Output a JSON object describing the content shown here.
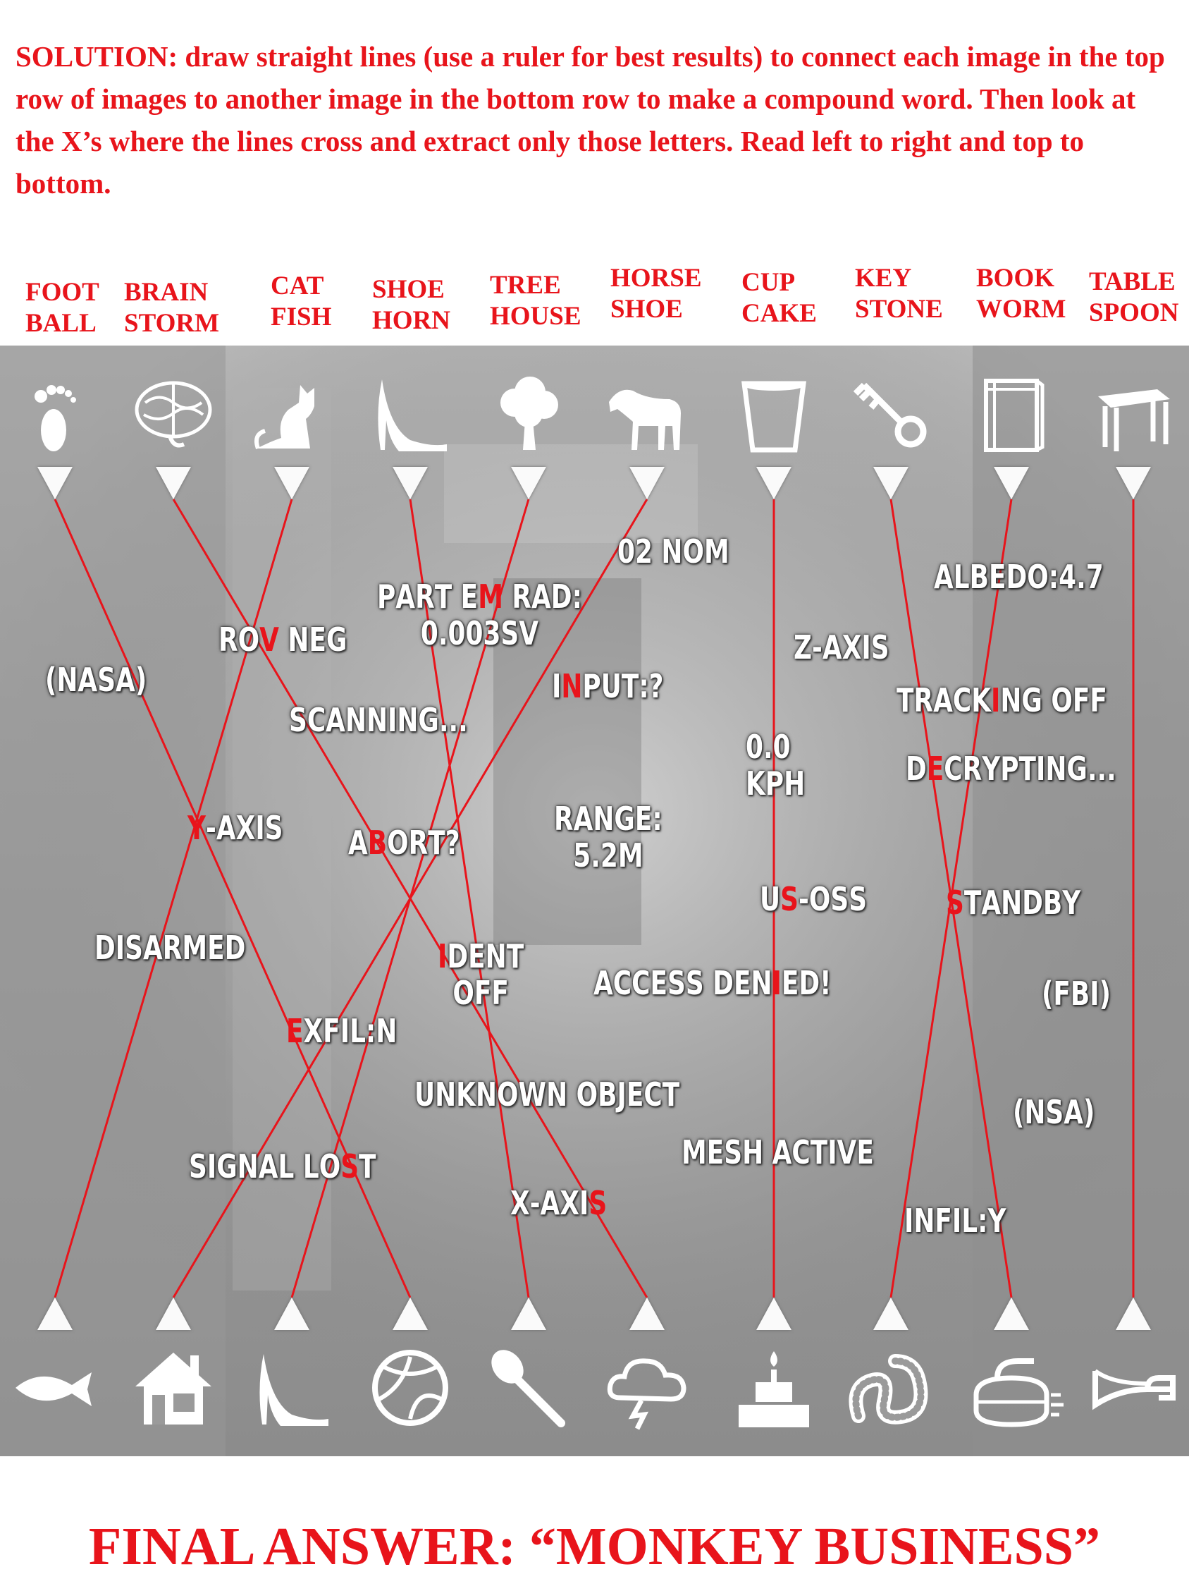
{
  "instructions": "SOLUTION: draw straight lines (use a ruler for best results) to connect each image in the top row of images to another image in the bottom row to make a compound word. Then look at the X’s where the lines cross and extract only those letters. Read left to right and top to bottom.",
  "compound_words": [
    {
      "first": "FOOT",
      "second": "BALL"
    },
    {
      "first": "BRAIN",
      "second": "STORM"
    },
    {
      "first": "CAT",
      "second": "FISH"
    },
    {
      "first": "SHOE",
      "second": "HORN"
    },
    {
      "first": "TREE",
      "second": "HOUSE"
    },
    {
      "first": "HORSE",
      "second": "SHOE"
    },
    {
      "first": "CUP",
      "second": "CAKE"
    },
    {
      "first": "KEY",
      "second": "STONE"
    },
    {
      "first": "BOOK",
      "second": "WORM"
    },
    {
      "first": "TABLE",
      "second": "SPOON"
    }
  ],
  "top_icons": [
    "foot-icon",
    "brain-icon",
    "cat-icon",
    "high-heel-shoe-icon",
    "tree-icon",
    "horse-icon",
    "cup-icon",
    "key-icon",
    "book-icon",
    "table-icon"
  ],
  "bottom_icons": [
    "fish-icon",
    "house-icon",
    "high-heel-shoe-icon",
    "volleyball-icon",
    "spoon-icon",
    "storm-cloud-icon",
    "cake-icon",
    "worm-icon",
    "curling-stone-icon",
    "horn-icon"
  ],
  "connections": [
    [
      0,
      3
    ],
    [
      1,
      5
    ],
    [
      2,
      0
    ],
    [
      3,
      4
    ],
    [
      4,
      2
    ],
    [
      5,
      1
    ],
    [
      6,
      6
    ],
    [
      7,
      8
    ],
    [
      8,
      7
    ],
    [
      9,
      9
    ]
  ],
  "line_color": "#e8141b",
  "accent_color": "#e8141b",
  "labels": [
    {
      "rows": [
        "02 NOM"
      ]
    },
    {
      "rows": [
        "PART EM RAD:",
        "0.003SV"
      ],
      "marked": [
        0,
        6
      ]
    },
    {
      "rows": [
        "ALBEDO:4.7"
      ]
    },
    {
      "rows": [
        "ROV NEG"
      ],
      "marked": [
        0,
        2
      ]
    },
    {
      "rows": [
        "Z-AXIS"
      ]
    },
    {
      "rows": [
        "(NASA)"
      ]
    },
    {
      "rows": [
        "INPUT:?"
      ],
      "marked": [
        0,
        1
      ]
    },
    {
      "rows": [
        "TRACKING OFF"
      ],
      "marked": [
        0,
        5
      ]
    },
    {
      "rows": [
        "SCANNING..."
      ]
    },
    {
      "rows": [
        "0.0",
        "KPH"
      ]
    },
    {
      "rows": [
        "DECRYPTING..."
      ],
      "marked": [
        0,
        1
      ]
    },
    {
      "rows": [
        "Y-AXIS"
      ],
      "marked": [
        0,
        0
      ]
    },
    {
      "rows": [
        "ABORT?"
      ],
      "marked": [
        0,
        1
      ]
    },
    {
      "rows": [
        "RANGE:",
        "5.2M"
      ]
    },
    {
      "rows": [
        "US-OSS"
      ],
      "marked": [
        0,
        1
      ]
    },
    {
      "rows": [
        "STANDBY"
      ],
      "marked": [
        0,
        0
      ]
    },
    {
      "rows": [
        "DISARMED"
      ]
    },
    {
      "rows": [
        "IDENT",
        "OFF"
      ],
      "marked": [
        0,
        0
      ]
    },
    {
      "rows": [
        "ACCESS DENIED!"
      ],
      "marked": [
        0,
        10
      ]
    },
    {
      "rows": [
        "(FBI)"
      ]
    },
    {
      "rows": [
        "EXFIL:N"
      ],
      "marked": [
        0,
        0
      ]
    },
    {
      "rows": [
        "UNKNOWN OBJECT"
      ]
    },
    {
      "rows": [
        "(NSA)"
      ]
    },
    {
      "rows": [
        "MESH ACTIVE"
      ]
    },
    {
      "rows": [
        "SIGNAL LOST"
      ],
      "marked": [
        0,
        9
      ]
    },
    {
      "rows": [
        "X-AXIS"
      ],
      "marked": [
        0,
        5
      ]
    },
    {
      "rows": [
        "INFIL:Y"
      ]
    }
  ],
  "final_answer": "FINAL ANSWER: “MONKEY BUSINESS”"
}
